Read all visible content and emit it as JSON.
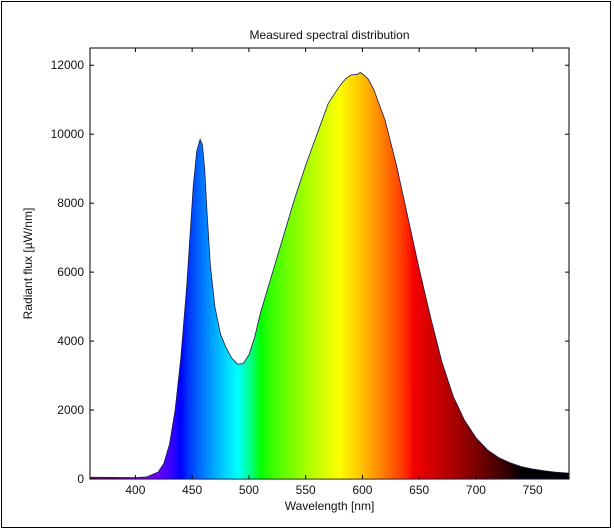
{
  "chart_data": {
    "type": "area",
    "title": "Measured spectral distribution",
    "xlabel": "Wavelength [nm]",
    "ylabel": "Radiant flux [µW/nm]",
    "xlim": [
      360,
      782
    ],
    "ylim": [
      0,
      12500
    ],
    "xticks": [
      400,
      450,
      500,
      550,
      600,
      650,
      700,
      750
    ],
    "yticks": [
      0,
      2000,
      4000,
      6000,
      8000,
      10000,
      12000
    ],
    "grid": false,
    "fill": "visible-spectrum colour gradient",
    "series": [
      {
        "x": [
          360,
          380,
          400,
          410,
          420,
          425,
          430,
          435,
          440,
          445,
          448,
          451,
          454,
          457,
          459,
          461,
          463,
          466,
          470,
          475,
          480,
          485,
          490,
          495,
          500,
          505,
          510,
          520,
          530,
          540,
          550,
          560,
          570,
          580,
          585,
          590,
          595,
          598,
          600,
          605,
          610,
          620,
          630,
          640,
          650,
          660,
          670,
          680,
          690,
          700,
          710,
          720,
          730,
          740,
          750,
          760,
          770,
          782
        ],
        "y": [
          50,
          45,
          40,
          60,
          200,
          450,
          1000,
          2000,
          3500,
          5500,
          7000,
          8500,
          9500,
          9850,
          9700,
          9000,
          7800,
          6200,
          5000,
          4200,
          3800,
          3500,
          3330,
          3350,
          3600,
          4100,
          4800,
          5900,
          7000,
          8100,
          9100,
          10000,
          10900,
          11400,
          11600,
          11720,
          11730,
          11790,
          11750,
          11600,
          11300,
          10400,
          9100,
          7600,
          6100,
          4700,
          3400,
          2400,
          1700,
          1200,
          850,
          620,
          470,
          360,
          290,
          240,
          200,
          170
        ]
      }
    ]
  }
}
